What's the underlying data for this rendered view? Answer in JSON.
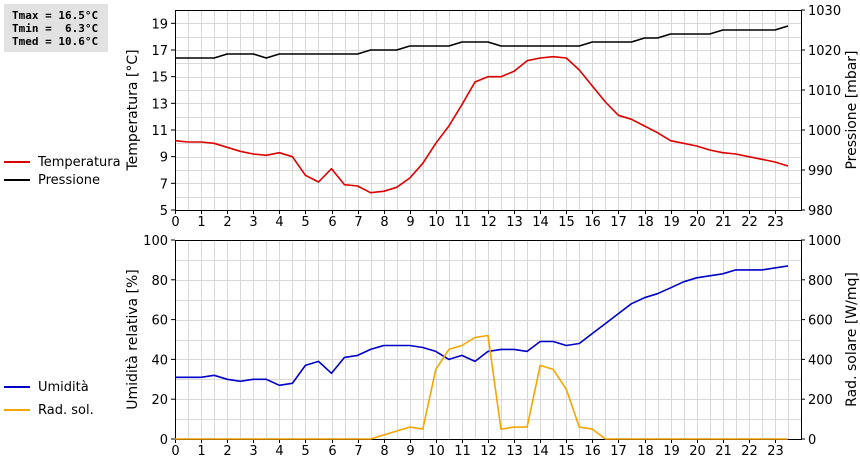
{
  "stats": {
    "tmax": "Tmax = 16.5°C",
    "tmin": "Tmin =  6.3°C",
    "tmed": "Tmed = 10.6°C"
  },
  "colors": {
    "temperature": "#dd0000",
    "pressure": "#000000",
    "humidity": "#0000c8",
    "radiation": "#f5a500",
    "grid": "#d8d8d8",
    "stats_bg": "#e2e2e2"
  },
  "legend_top": [
    {
      "label": "Temperatura",
      "color": "#dd0000"
    },
    {
      "label": "Pressione",
      "color": "#000000"
    }
  ],
  "legend_bottom": [
    {
      "label": "Umidità",
      "color": "#0000c8"
    },
    {
      "label": "Rad. sol.",
      "color": "#f5a500"
    }
  ],
  "chart_data": [
    {
      "type": "line",
      "grid": true,
      "x_ticks": [
        0,
        1,
        2,
        3,
        4,
        5,
        6,
        7,
        8,
        9,
        10,
        11,
        12,
        13,
        14,
        15,
        16,
        17,
        18,
        19,
        20,
        21,
        22,
        23
      ],
      "xlim": [
        0,
        24
      ],
      "ylabel_left": "Temperatura [°C]",
      "ylabel_right": "Pressione [mbar]",
      "ylim_left": [
        5,
        20
      ],
      "yticks_left": [
        5,
        7,
        9,
        11,
        13,
        15,
        17,
        19
      ],
      "ylim_right": [
        980,
        1030
      ],
      "yticks_right": [
        980,
        990,
        1000,
        1010,
        1020,
        1030
      ],
      "series": [
        {
          "name": "Temperatura",
          "axis": "left",
          "color": "#dd0000",
          "x": [
            0,
            0.5,
            1,
            1.5,
            2,
            2.5,
            3,
            3.5,
            4,
            4.5,
            5,
            5.5,
            6,
            6.5,
            7,
            7.5,
            8,
            8.5,
            9,
            9.5,
            10,
            10.5,
            11,
            11.5,
            12,
            12.5,
            13,
            13.5,
            14,
            14.5,
            15,
            15.5,
            16,
            16.5,
            17,
            17.5,
            18,
            18.5,
            19,
            19.5,
            20,
            20.5,
            21,
            21.5,
            22,
            22.5,
            23,
            23.5
          ],
          "values": [
            10.2,
            10.1,
            10.1,
            10.0,
            9.7,
            9.4,
            9.2,
            9.1,
            9.3,
            9.0,
            7.6,
            7.1,
            8.1,
            6.9,
            6.8,
            6.3,
            6.4,
            6.7,
            7.4,
            8.5,
            10.0,
            11.3,
            12.9,
            14.6,
            15.0,
            15.0,
            15.4,
            16.2,
            16.4,
            16.5,
            16.4,
            15.5,
            14.3,
            13.1,
            12.1,
            11.8,
            11.3,
            10.8,
            10.2,
            10.0,
            9.8,
            9.5,
            9.3,
            9.2,
            9.0,
            8.8,
            8.6,
            8.3
          ]
        },
        {
          "name": "Pressione",
          "axis": "right",
          "color": "#000000",
          "x": [
            0,
            0.5,
            1,
            1.5,
            2,
            2.5,
            3,
            3.5,
            4,
            4.5,
            5,
            5.5,
            6,
            6.5,
            7,
            7.5,
            8,
            8.5,
            9,
            9.5,
            10,
            10.5,
            11,
            11.5,
            12,
            12.5,
            13,
            13.5,
            14,
            14.5,
            15,
            15.5,
            16,
            16.5,
            17,
            17.5,
            18,
            18.5,
            19,
            19.5,
            20,
            20.5,
            21,
            21.5,
            22,
            22.5,
            23,
            23.5
          ],
          "values": [
            1018,
            1018,
            1018,
            1018,
            1019,
            1019,
            1019,
            1018,
            1019,
            1019,
            1019,
            1019,
            1019,
            1019,
            1019,
            1020,
            1020,
            1020,
            1021,
            1021,
            1021,
            1021,
            1022,
            1022,
            1022,
            1021,
            1021,
            1021,
            1021,
            1021,
            1021,
            1021,
            1022,
            1022,
            1022,
            1022,
            1023,
            1023,
            1024,
            1024,
            1024,
            1024,
            1025,
            1025,
            1025,
            1025,
            1025,
            1026
          ]
        }
      ]
    },
    {
      "type": "line",
      "grid": true,
      "x_ticks": [
        0,
        1,
        2,
        3,
        4,
        5,
        6,
        7,
        8,
        9,
        10,
        11,
        12,
        13,
        14,
        15,
        16,
        17,
        18,
        19,
        20,
        21,
        22,
        23
      ],
      "xlim": [
        0,
        24
      ],
      "ylabel_left": "Umidità relativa [%]",
      "ylabel_right": "Rad. solare [W/mq]",
      "ylim_left": [
        0,
        100
      ],
      "yticks_left": [
        0,
        20,
        40,
        60,
        80,
        100
      ],
      "ylim_right": [
        0,
        1000
      ],
      "yticks_right": [
        0,
        200,
        400,
        600,
        800,
        1000
      ],
      "series": [
        {
          "name": "Umidità",
          "axis": "left",
          "color": "#0000c8",
          "x": [
            0,
            0.5,
            1,
            1.5,
            2,
            2.5,
            3,
            3.5,
            4,
            4.5,
            5,
            5.5,
            6,
            6.5,
            7,
            7.5,
            8,
            8.5,
            9,
            9.5,
            10,
            10.5,
            11,
            11.5,
            12,
            12.5,
            13,
            13.5,
            14,
            14.5,
            15,
            15.5,
            16,
            16.5,
            17,
            17.5,
            18,
            18.5,
            19,
            19.5,
            20,
            20.5,
            21,
            21.5,
            22,
            22.5,
            23,
            23.5
          ],
          "values": [
            31,
            31,
            31,
            32,
            30,
            29,
            30,
            30,
            27,
            28,
            37,
            39,
            33,
            41,
            42,
            45,
            47,
            47,
            47,
            46,
            44,
            40,
            42,
            39,
            44,
            45,
            45,
            44,
            49,
            49,
            47,
            48,
            53,
            58,
            63,
            68,
            71,
            73,
            76,
            79,
            81,
            82,
            83,
            85,
            85,
            85,
            86,
            87
          ]
        },
        {
          "name": "Rad. sol.",
          "axis": "right",
          "color": "#f5a500",
          "x": [
            0,
            0.5,
            1,
            1.5,
            2,
            2.5,
            3,
            3.5,
            4,
            4.5,
            5,
            5.5,
            6,
            6.5,
            7,
            7.5,
            8,
            8.5,
            9,
            9.5,
            10,
            10.5,
            11,
            11.5,
            12,
            12.5,
            13,
            13.5,
            14,
            14.5,
            15,
            15.5,
            16,
            16.5,
            17,
            17.5,
            18,
            18.5,
            19,
            19.5,
            20,
            20.5,
            21,
            21.5,
            22,
            22.5,
            23,
            23.5
          ],
          "values": [
            0,
            0,
            0,
            0,
            0,
            0,
            0,
            0,
            0,
            0,
            0,
            0,
            0,
            0,
            0,
            0,
            20,
            40,
            60,
            50,
            350,
            450,
            470,
            510,
            520,
            50,
            60,
            60,
            370,
            350,
            250,
            60,
            50,
            0,
            0,
            0,
            0,
            0,
            0,
            0,
            0,
            0,
            0,
            0,
            0,
            0,
            0,
            0
          ]
        }
      ]
    }
  ]
}
